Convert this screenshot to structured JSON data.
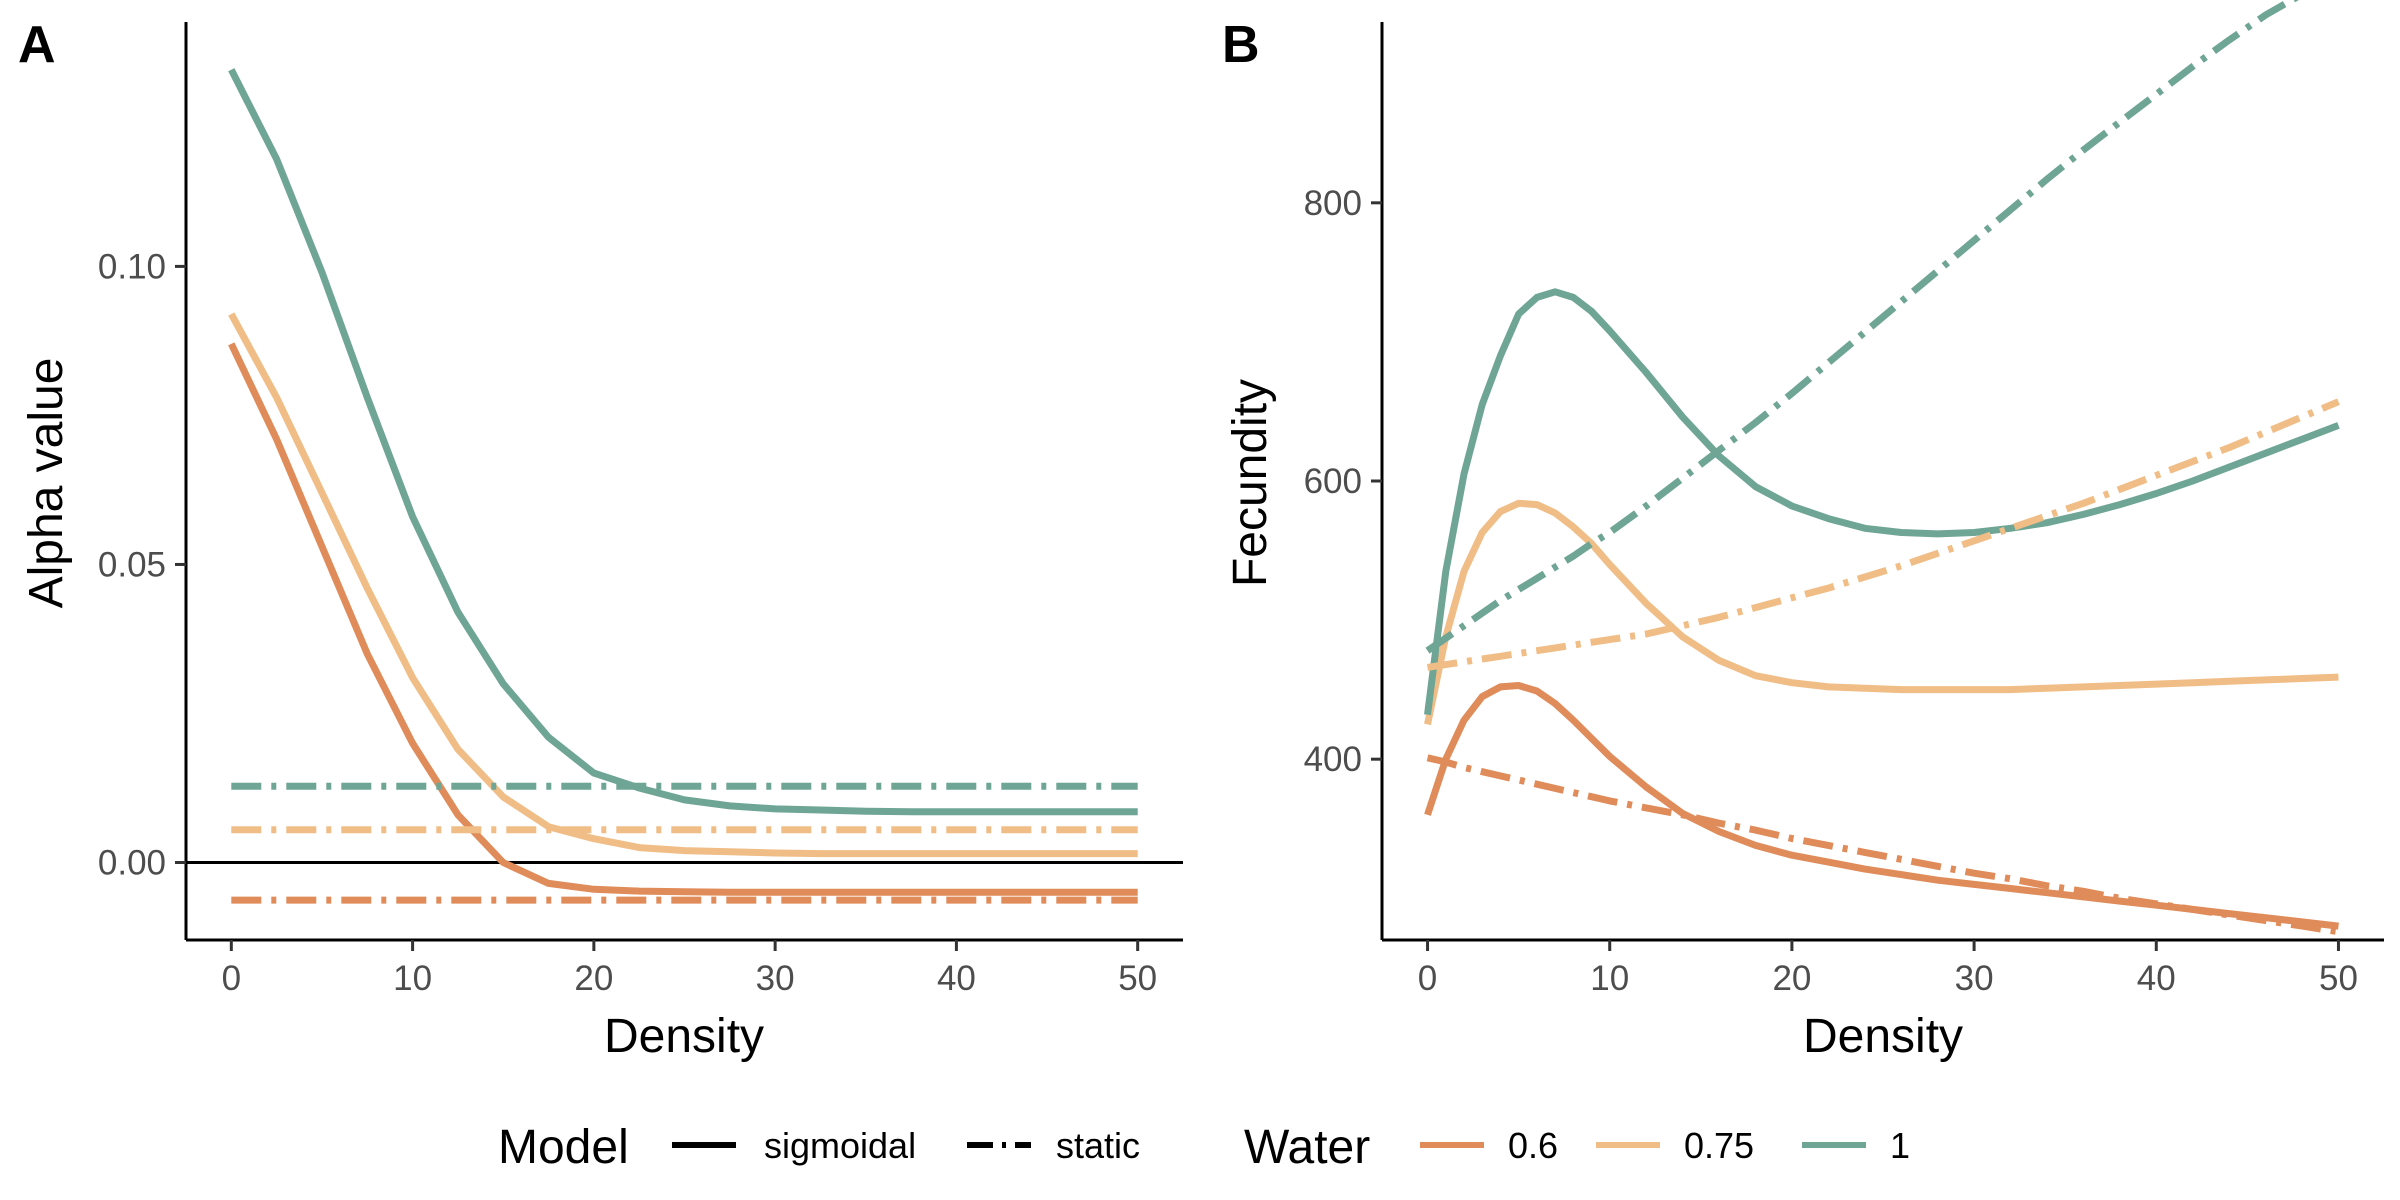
{
  "chart_data": [
    {
      "type": "line",
      "panel": "A",
      "title": "",
      "xlabel": "Density",
      "ylabel": "Alpha value",
      "xlim": [
        -2.5,
        52.5
      ],
      "ylim": [
        -0.013,
        0.141
      ],
      "xticks": [
        0,
        10,
        20,
        30,
        40,
        50
      ],
      "xtick_labels": [
        "0",
        "10",
        "20",
        "30",
        "40",
        "50"
      ],
      "yticks": [
        0.0,
        0.05,
        0.1
      ],
      "ytick_labels": [
        "0.00",
        "0.05",
        "0.10"
      ],
      "reference_hline": 0,
      "grid": false,
      "x": [
        0,
        2.5,
        5,
        7.5,
        10,
        12.5,
        15,
        17.5,
        20,
        22.5,
        25,
        27.5,
        30,
        32.5,
        35,
        37.5,
        40,
        42.5,
        45,
        47.5,
        50
      ],
      "series": [
        {
          "name": "sigmoidal / 0.6",
          "model": "sigmoidal",
          "water": "0.6",
          "values": [
            0.087,
            0.071,
            0.053,
            0.035,
            0.02,
            0.008,
            0.0,
            -0.0035,
            -0.0045,
            -0.0048,
            -0.0049,
            -0.005,
            -0.005,
            -0.005,
            -0.005,
            -0.005,
            -0.005,
            -0.005,
            -0.005,
            -0.005,
            -0.005
          ]
        },
        {
          "name": "sigmoidal / 0.75",
          "model": "sigmoidal",
          "water": "0.75",
          "values": [
            0.092,
            0.078,
            0.062,
            0.046,
            0.031,
            0.019,
            0.011,
            0.006,
            0.004,
            0.0025,
            0.002,
            0.0018,
            0.0016,
            0.0015,
            0.0015,
            0.0015,
            0.0015,
            0.0015,
            0.0015,
            0.0015,
            0.0015
          ]
        },
        {
          "name": "sigmoidal / 1",
          "model": "sigmoidal",
          "water": "1",
          "values": [
            0.133,
            0.118,
            0.099,
            0.078,
            0.058,
            0.042,
            0.03,
            0.021,
            0.015,
            0.0125,
            0.0105,
            0.0095,
            0.009,
            0.0088,
            0.0086,
            0.0085,
            0.0085,
            0.0085,
            0.0085,
            0.0085,
            0.0085
          ]
        },
        {
          "name": "static / 0.6",
          "model": "static",
          "water": "0.6",
          "values": [
            -0.0063,
            -0.0063,
            -0.0063,
            -0.0063,
            -0.0063,
            -0.0063,
            -0.0063,
            -0.0063,
            -0.0063,
            -0.0063,
            -0.0063,
            -0.0063,
            -0.0063,
            -0.0063,
            -0.0063,
            -0.0063,
            -0.0063,
            -0.0063,
            -0.0063,
            -0.0063,
            -0.0063
          ]
        },
        {
          "name": "static / 0.75",
          "model": "static",
          "water": "0.75",
          "values": [
            0.0055,
            0.0055,
            0.0055,
            0.0055,
            0.0055,
            0.0055,
            0.0055,
            0.0055,
            0.0055,
            0.0055,
            0.0055,
            0.0055,
            0.0055,
            0.0055,
            0.0055,
            0.0055,
            0.0055,
            0.0055,
            0.0055,
            0.0055,
            0.0055
          ]
        },
        {
          "name": "static / 1",
          "model": "static",
          "water": "1",
          "values": [
            0.0128,
            0.0128,
            0.0128,
            0.0128,
            0.0128,
            0.0128,
            0.0128,
            0.0128,
            0.0128,
            0.0128,
            0.0128,
            0.0128,
            0.0128,
            0.0128,
            0.0128,
            0.0128,
            0.0128,
            0.0128,
            0.0128,
            0.0128,
            0.0128
          ]
        }
      ]
    },
    {
      "type": "line",
      "panel": "B",
      "title": "",
      "xlabel": "Density",
      "ylabel": "Fecundity",
      "xlim": [
        -2.5,
        52.5
      ],
      "ylim": [
        270,
        930
      ],
      "xticks": [
        0,
        10,
        20,
        30,
        40,
        50
      ],
      "xtick_labels": [
        "0",
        "10",
        "20",
        "30",
        "40",
        "50"
      ],
      "yticks": [
        400,
        600,
        800
      ],
      "ytick_labels": [
        "400",
        "600",
        "800"
      ],
      "grid": false,
      "x": [
        0,
        1,
        2,
        3,
        4,
        5,
        6,
        7,
        8,
        9,
        10,
        12,
        14,
        16,
        18,
        20,
        22,
        24,
        26,
        28,
        30,
        32,
        34,
        36,
        38,
        40,
        42,
        44,
        46,
        48,
        50
      ],
      "series": [
        {
          "name": "sigmoidal / 0.6",
          "model": "sigmoidal",
          "water": "0.6",
          "values": [
            360,
            400,
            428,
            445,
            452,
            453,
            449,
            440,
            428,
            415,
            402,
            380,
            361,
            348,
            338,
            331,
            326,
            321,
            317,
            313,
            310,
            307,
            304,
            301,
            298,
            295,
            292,
            289,
            286,
            283,
            280
          ]
        },
        {
          "name": "sigmoidal / 0.75",
          "model": "sigmoidal",
          "water": "0.75",
          "values": [
            425,
            488,
            535,
            563,
            578,
            584,
            583,
            577,
            567,
            555,
            540,
            512,
            488,
            471,
            460,
            455,
            452,
            451,
            450,
            450,
            450,
            450,
            451,
            452,
            453,
            454,
            455,
            456,
            457,
            458,
            459
          ]
        },
        {
          "name": "sigmoidal / 1",
          "model": "sigmoidal",
          "water": "1",
          "values": [
            432,
            535,
            605,
            655,
            690,
            720,
            732,
            736,
            732,
            722,
            708,
            678,
            646,
            618,
            596,
            582,
            573,
            566,
            563,
            562,
            563,
            566,
            570,
            576,
            583,
            591,
            600,
            610,
            620,
            630,
            640
          ]
        },
        {
          "name": "static / 0.6",
          "model": "static",
          "water": "0.6",
          "values": [
            401,
            398,
            394,
            391,
            388,
            385,
            382,
            379,
            376,
            373,
            370,
            365,
            360,
            354,
            349,
            343,
            338,
            333,
            328,
            323,
            318,
            314,
            309,
            305,
            300,
            296,
            292,
            288,
            284,
            280,
            276
          ]
        },
        {
          "name": "static / 0.75",
          "model": "static",
          "water": "0.75",
          "values": [
            466,
            468,
            470,
            472,
            474,
            476,
            478,
            480,
            482,
            484,
            486,
            490,
            496,
            502,
            509,
            516,
            523,
            531,
            539,
            548,
            557,
            566,
            575,
            584,
            594,
            604,
            614,
            624,
            635,
            646,
            657
          ]
        },
        {
          "name": "static / 1",
          "model": "static",
          "water": "1",
          "values": [
            478,
            487,
            496,
            505,
            514,
            522,
            530,
            538,
            546,
            555,
            563,
            582,
            602,
            622,
            642,
            663,
            685,
            707,
            729,
            751,
            773,
            795,
            817,
            838,
            858,
            878,
            898,
            917,
            935,
            950,
            962
          ]
        }
      ]
    }
  ],
  "legend": {
    "model_title": "Model",
    "model_items": [
      {
        "label": "sigmoidal",
        "style": "solid"
      },
      {
        "label": "static",
        "style": "dashdot"
      }
    ],
    "water_title": "Water",
    "water_items": [
      {
        "label": "0.6",
        "color": "#df8c5a"
      },
      {
        "label": "0.75",
        "color": "#f0bd86"
      },
      {
        "label": "1",
        "color": "#6fa594"
      }
    ]
  },
  "colors": {
    "0.6": "#df8c5a",
    "0.75": "#f0bd86",
    "1": "#6fa594",
    "axis": "#000000",
    "tick_text": "#4d4d4d"
  }
}
